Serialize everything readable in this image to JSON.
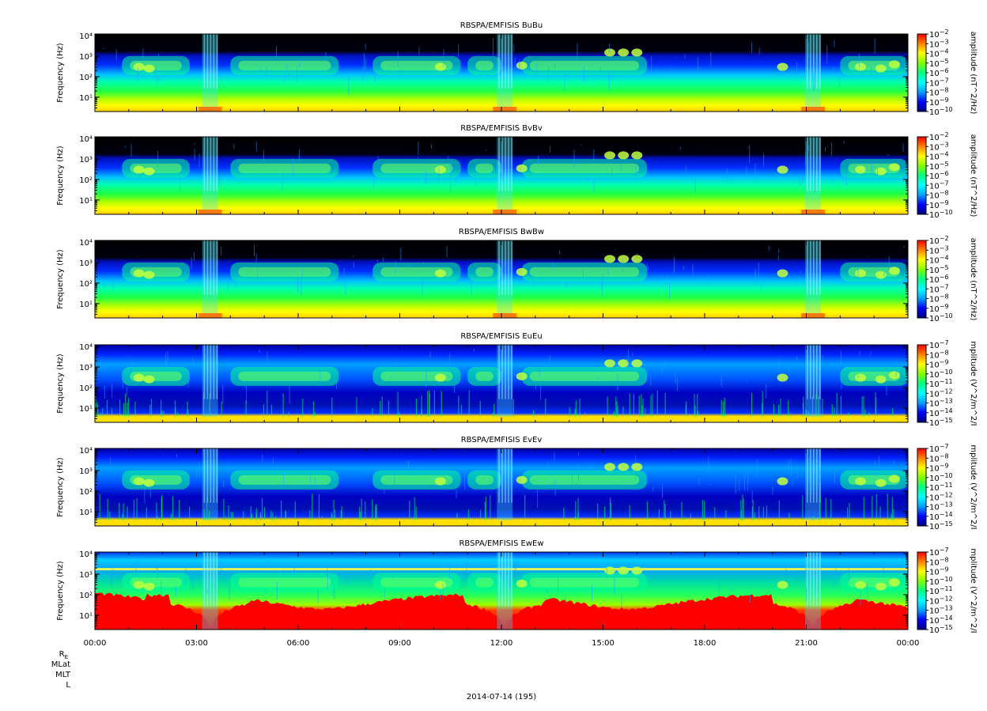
{
  "chart_data": {
    "type": "heatmap",
    "instrument": "RBSPA/EMFISIS",
    "y_axis": {
      "label": "Frequency (Hz)",
      "scale": "log",
      "range_hz": [
        2,
        12000
      ],
      "tick_values": [
        10,
        100,
        1000,
        10000
      ],
      "tick_labels": [
        "10¹",
        "10²",
        "10³",
        "10⁴"
      ]
    },
    "x_axis": {
      "tick_labels": [
        "00:00",
        "03:00",
        "06:00",
        "09:00",
        "12:00",
        "15:00",
        "18:00",
        "21:00",
        "00:00"
      ],
      "range_hours": [
        0,
        24
      ],
      "minor_tick_hours": 1
    },
    "panels": [
      {
        "title": "RBSPA/EMFISIS  BuBu",
        "colorbar_label": "amplitude (nT^2/Hz)",
        "cb_min_exp": -10,
        "cb_max_exp": -2,
        "component": "B"
      },
      {
        "title": "RBSPA/EMFISIS  BvBv",
        "colorbar_label": "amplitude (nT^2/Hz)",
        "cb_min_exp": -10,
        "cb_max_exp": -2,
        "component": "B"
      },
      {
        "title": "RBSPA/EMFISIS  BwBw",
        "colorbar_label": "amplitude (nT^2/Hz)",
        "cb_min_exp": -10,
        "cb_max_exp": -2,
        "component": "B"
      },
      {
        "title": "RBSPA/EMFISIS  EuEu",
        "colorbar_label": "mplitude (V^2/m^2/I",
        "cb_min_exp": -15,
        "cb_max_exp": -7,
        "component": "E"
      },
      {
        "title": "RBSPA/EMFISIS  EvEv",
        "colorbar_label": "mplitude (V^2/m^2/I",
        "cb_min_exp": -15,
        "cb_max_exp": -7,
        "component": "E"
      },
      {
        "title": "RBSPA/EMFISIS  EwEw",
        "colorbar_label": "mplitude (V^2/m^2/I",
        "cb_min_exp": -15,
        "cb_max_exp": -7,
        "component": "Ew"
      }
    ],
    "perigee_hours": [
      3.4,
      12.1,
      21.2
    ],
    "colormap": [
      "#000080",
      "#0000ff",
      "#00a0ff",
      "#00ffff",
      "#00ff80",
      "#80ff00",
      "#ffff00",
      "#ff8000",
      "#ff0000"
    ],
    "ephemeris_labels": [
      "R",
      "MLat",
      "MLT",
      "L"
    ],
    "ephemeris_subscript": "E",
    "date_label": "2014-07-14 (195)"
  }
}
